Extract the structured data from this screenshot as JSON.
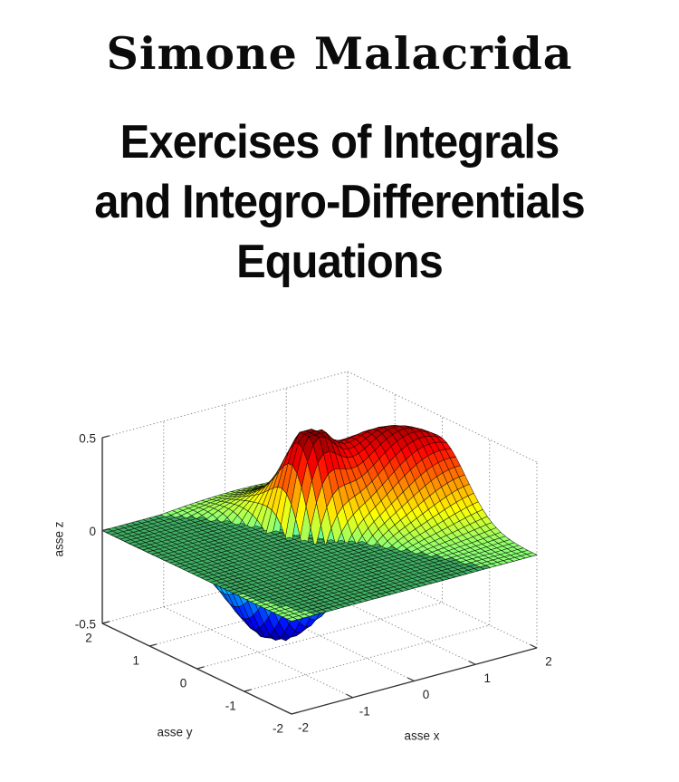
{
  "cover": {
    "author": "Simone Malacrida",
    "title_lines": [
      "Exercises of Integrals",
      "and Integro-Differentials",
      "Equations"
    ]
  },
  "chart_data": {
    "type": "surface",
    "title": "",
    "xlabel": "asse x",
    "ylabel": "asse y",
    "zlabel": "asse z",
    "x_range": [
      -2,
      2
    ],
    "y_range": [
      -2,
      2
    ],
    "z_range": [
      -0.5,
      0.5
    ],
    "x_tick_labels": [
      "-2",
      "-1",
      "0",
      "1",
      "2"
    ],
    "y_tick_labels": [
      "2",
      "1",
      "0",
      "-1",
      "-2"
    ],
    "z_tick_labels": [
      "0.5",
      "0",
      "-0.5"
    ],
    "grid": "dotted",
    "legend": "none",
    "colormap": "jet",
    "view": {
      "azimuth": -37.5,
      "elevation": 30
    },
    "mesh_divisions": 42,
    "colors": {
      "plane_face": "#3fae63",
      "mesh_edge": "rgba(0,0,0,0.8)",
      "grid_line": "#888888",
      "axis_line": "#333333",
      "label_text": "#222222"
    },
    "surfaces": [
      {
        "name": "zero-plane",
        "kind": "constant",
        "z": 0
      },
      {
        "name": "gaussian-mixture",
        "kind": "gaussian-sum",
        "clip": [
          -0.497,
          0.497
        ],
        "components": [
          {
            "amp": 0.46,
            "x0": 1.45,
            "y0": 0.3,
            "sx": 1.35,
            "sy": 0.82,
            "tilt": -0.4
          },
          {
            "amp": 0.4,
            "x0": 0.18,
            "y0": 0.48,
            "sx": 0.42,
            "sy": 0.46,
            "tilt": 0
          },
          {
            "amp": -0.55,
            "x0": -0.5,
            "y0": 0.25,
            "sx": 0.65,
            "sy": 0.68,
            "tilt": -0.8
          }
        ]
      }
    ]
  }
}
